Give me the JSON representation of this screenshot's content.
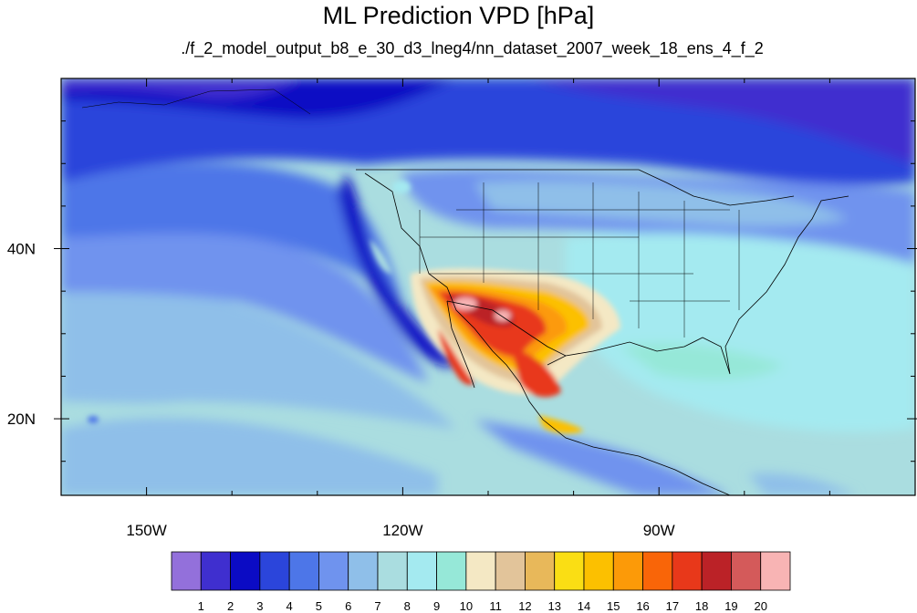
{
  "title": "ML Prediction VPD [hPa]",
  "subtitle": "./f_2_model_output_b8_e_30_d3_lneg4/nn_dataset_2007_week_18_ens_4_f_2",
  "axes": {
    "x_ticks": [
      {
        "lon": -150,
        "label": "150W"
      },
      {
        "lon": -120,
        "label": "120W"
      },
      {
        "lon": -90,
        "label": "90W"
      }
    ],
    "y_ticks": [
      {
        "lat": 40,
        "label": "40N"
      },
      {
        "lat": 20,
        "label": "20N"
      }
    ],
    "lon_range": [
      -160,
      -60
    ],
    "lat_range": [
      11,
      60
    ]
  },
  "colorbar": {
    "labels": [
      "1",
      "2",
      "3",
      "4",
      "5",
      "6",
      "7",
      "8",
      "9",
      "10",
      "11",
      "12",
      "13",
      "14",
      "15",
      "16",
      "17",
      "18",
      "19",
      "20"
    ],
    "colors": [
      "#9370db",
      "#3f2fcf",
      "#0b0bc4",
      "#2b45db",
      "#4d76e8",
      "#6f93ee",
      "#8fbfe9",
      "#aadde0",
      "#a4eaf0",
      "#96e8d8",
      "#f4e8c4",
      "#e2c49a",
      "#e8b85a",
      "#fade14",
      "#fcc000",
      "#fc9a08",
      "#f96508",
      "#e8381a",
      "#bb2227",
      "#d45a5a",
      "#f8b4b4"
    ]
  },
  "colors": {
    "ocean_low": "#8fbfe9",
    "ocean_high": "#aadde0",
    "north_cold": "#2b45db",
    "desert_hot": "#e8381a",
    "land_outline": "#000000"
  }
}
